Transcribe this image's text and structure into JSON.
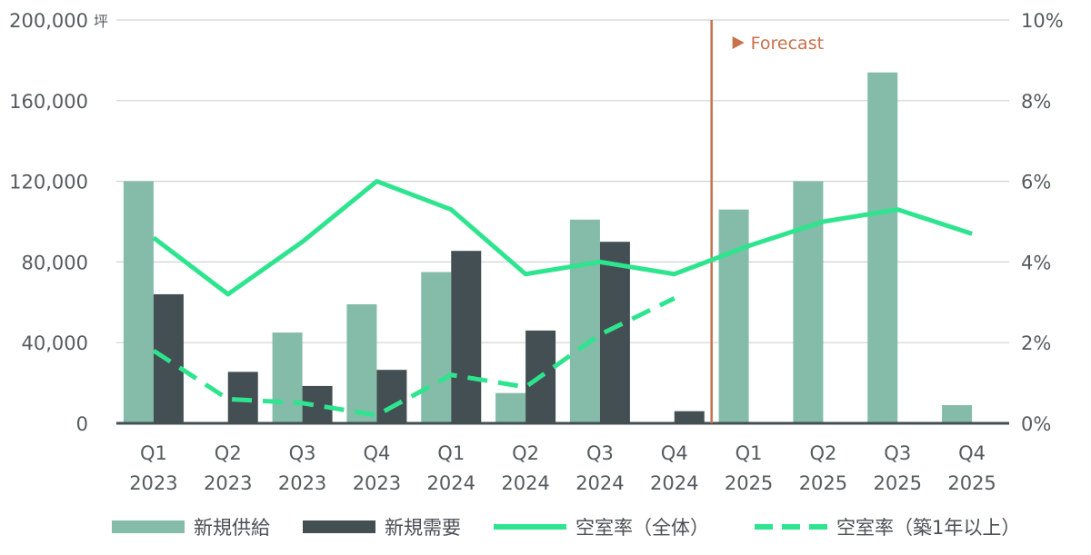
{
  "chart_data": {
    "type": "bar",
    "categories": [
      {
        "quarter": "Q1",
        "year": "2023"
      },
      {
        "quarter": "Q2",
        "year": "2023"
      },
      {
        "quarter": "Q3",
        "year": "2023"
      },
      {
        "quarter": "Q4",
        "year": "2023"
      },
      {
        "quarter": "Q1",
        "year": "2024"
      },
      {
        "quarter": "Q2",
        "year": "2024"
      },
      {
        "quarter": "Q3",
        "year": "2024"
      },
      {
        "quarter": "Q4",
        "year": "2024"
      },
      {
        "quarter": "Q1",
        "year": "2025"
      },
      {
        "quarter": "Q2",
        "year": "2025"
      },
      {
        "quarter": "Q3",
        "year": "2025"
      },
      {
        "quarter": "Q4",
        "year": "2025"
      }
    ],
    "left_axis": {
      "unit": "坪",
      "ylim": [
        0,
        200000
      ],
      "ticks": [
        0,
        40000,
        80000,
        120000,
        160000,
        200000
      ],
      "tick_labels": [
        "0",
        "40,000",
        "80,000",
        "120,000",
        "160,000",
        "200,000"
      ]
    },
    "right_axis": {
      "ylim": [
        0,
        10
      ],
      "ticks": [
        0,
        2,
        4,
        6,
        8,
        10
      ],
      "tick_labels": [
        "0%",
        "2%",
        "4%",
        "6%",
        "8%",
        "10%"
      ]
    },
    "bar_series": [
      {
        "name": "新規供給",
        "color": "#84bba9",
        "values": [
          120000,
          0,
          45000,
          59000,
          75000,
          15000,
          101000,
          0,
          106000,
          120000,
          174000,
          9000
        ]
      },
      {
        "name": "新規需要",
        "color": "#434f52",
        "values": [
          64000,
          25500,
          18500,
          26500,
          85500,
          46000,
          90000,
          6000,
          null,
          null,
          null,
          null
        ]
      }
    ],
    "line_series": [
      {
        "name": "空室率（全体）",
        "color": "#2ee48e",
        "style": "solid",
        "values": [
          4.6,
          3.2,
          4.5,
          6.0,
          5.3,
          3.7,
          4.0,
          3.7,
          4.4,
          5.0,
          5.3,
          4.7
        ]
      },
      {
        "name": "空室率（築1年以上）",
        "color": "#2ee48e",
        "style": "dashed",
        "values": [
          1.8,
          0.6,
          0.5,
          0.2,
          1.2,
          0.9,
          2.2,
          3.1,
          null,
          null,
          null,
          null
        ]
      }
    ],
    "forecast": {
      "label": "Forecast",
      "start_after_index": 7,
      "color": "#c8714c"
    },
    "grid": "horizontal",
    "legend_position": "bottom"
  }
}
